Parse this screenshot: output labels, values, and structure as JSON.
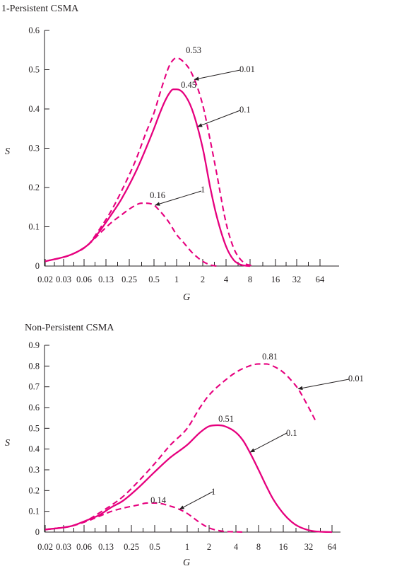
{
  "colors": {
    "curve": "#e6007e",
    "axis": "#231f20",
    "arrow": "#231f20"
  },
  "chart_data": [
    {
      "id": "persistent",
      "type": "line",
      "title": "1-Persistent CSMA",
      "xlabel": "G",
      "ylabel": "S",
      "x_scale": "log2",
      "x_ticks": [
        0.02,
        0.03,
        0.06,
        0.13,
        0.25,
        0.5,
        1,
        2,
        4,
        8,
        16,
        32,
        64
      ],
      "x_tick_labels": [
        "0.02",
        "0.03",
        "0.06",
        "0.13",
        "0.25",
        "0.5",
        "1",
        "2",
        "4",
        "8",
        "16",
        "32",
        "64"
      ],
      "y_ticks": [
        0,
        0.1,
        0.2,
        0.3,
        0.4,
        0.5,
        0.6
      ],
      "y_tick_labels": [
        "0",
        "0.1",
        "0.2",
        "0.3",
        "0.4",
        "0.5",
        "0.6"
      ],
      "ylim": [
        0,
        0.6
      ],
      "series": [
        {
          "name": "0.01",
          "style": "dashed",
          "x": [
            0.02,
            0.04,
            0.07,
            0.1,
            0.15,
            0.2,
            0.3,
            0.4,
            0.5,
            0.6,
            0.7,
            0.8,
            0.9,
            1.0,
            1.2,
            1.5,
            2,
            2.5,
            3,
            4,
            5,
            6,
            7,
            8,
            9
          ],
          "y": [
            0.012,
            0.03,
            0.055,
            0.09,
            0.14,
            0.19,
            0.27,
            0.34,
            0.39,
            0.44,
            0.48,
            0.51,
            0.525,
            0.53,
            0.52,
            0.49,
            0.41,
            0.32,
            0.24,
            0.11,
            0.045,
            0.018,
            0.006,
            0.002,
            0.0
          ]
        },
        {
          "name": "0.1",
          "style": "solid",
          "x": [
            0.02,
            0.04,
            0.07,
            0.1,
            0.15,
            0.2,
            0.3,
            0.4,
            0.5,
            0.6,
            0.7,
            0.8,
            0.9,
            1.0,
            1.2,
            1.5,
            2,
            2.5,
            3,
            4,
            5,
            6,
            7,
            8
          ],
          "y": [
            0.012,
            0.03,
            0.055,
            0.085,
            0.13,
            0.17,
            0.24,
            0.3,
            0.35,
            0.39,
            0.42,
            0.44,
            0.45,
            0.45,
            0.44,
            0.4,
            0.3,
            0.2,
            0.13,
            0.05,
            0.015,
            0.004,
            0.001,
            0.0
          ]
        },
        {
          "name": "1",
          "style": "dashed",
          "x": [
            0.02,
            0.04,
            0.07,
            0.1,
            0.15,
            0.2,
            0.25,
            0.3,
            0.35,
            0.4,
            0.5,
            0.6,
            0.7,
            0.8,
            1.0,
            1.2,
            1.5,
            2,
            2.5,
            3
          ],
          "y": [
            0.012,
            0.03,
            0.055,
            0.08,
            0.11,
            0.13,
            0.145,
            0.155,
            0.16,
            0.16,
            0.155,
            0.14,
            0.125,
            0.11,
            0.08,
            0.06,
            0.035,
            0.012,
            0.003,
            0.0
          ]
        }
      ],
      "annotations": [
        {
          "text": "0.53",
          "kind": "peak"
        },
        {
          "text": "0.45",
          "kind": "peak"
        },
        {
          "text": "0.16",
          "kind": "peak"
        },
        {
          "text": "0.01",
          "kind": "series-label",
          "series": "0.01",
          "target_x": 1.6,
          "target_y": 0.475
        },
        {
          "text": "0.1",
          "kind": "series-label",
          "series": "0.1",
          "target_x": 1.75,
          "target_y": 0.355
        },
        {
          "text": "1",
          "kind": "series-label",
          "series": "1",
          "target_x": 0.52,
          "target_y": 0.155
        }
      ]
    },
    {
      "id": "nonpersistent",
      "type": "line",
      "title": "Non-Persistent CSMA",
      "xlabel": "G",
      "ylabel": "S",
      "x_scale": "log2",
      "x_ticks": [
        0.02,
        0.03,
        0.06,
        0.13,
        0.25,
        0.5,
        1,
        2,
        4,
        8,
        16,
        32,
        64
      ],
      "x_tick_labels": [
        "0.02",
        "0.03",
        "0.06",
        "0.13",
        "0.25",
        "0.5",
        "1",
        "2",
        "4",
        "8",
        "16",
        "32",
        "64"
      ],
      "y_ticks": [
        0,
        0.1,
        0.2,
        0.3,
        0.4,
        0.5,
        0.6,
        0.7,
        0.8,
        0.9
      ],
      "y_tick_labels": [
        "0",
        "0.1",
        "0.2",
        "0.3",
        "0.4",
        "0.5",
        "0.6",
        "0.7",
        "0.8",
        "0.9"
      ],
      "ylim": [
        0,
        0.9
      ],
      "series": [
        {
          "name": "0.01",
          "style": "dashed",
          "x": [
            0.02,
            0.04,
            0.07,
            0.1,
            0.15,
            0.2,
            0.3,
            0.5,
            0.7,
            1,
            1.5,
            2,
            3,
            4,
            6,
            8,
            10,
            12,
            16,
            20,
            24,
            32,
            40
          ],
          "y": [
            0.012,
            0.03,
            0.06,
            0.09,
            0.13,
            0.17,
            0.24,
            0.33,
            0.42,
            0.5,
            0.6,
            0.66,
            0.73,
            0.77,
            0.8,
            0.81,
            0.81,
            0.8,
            0.77,
            0.73,
            0.69,
            0.6,
            0.53
          ]
        },
        {
          "name": "0.1",
          "style": "solid",
          "x": [
            0.02,
            0.04,
            0.07,
            0.1,
            0.15,
            0.2,
            0.3,
            0.5,
            0.7,
            1,
            1.5,
            2,
            2.5,
            3,
            4,
            5,
            6,
            8,
            10,
            12,
            16,
            20,
            24,
            32,
            40,
            50,
            64
          ],
          "y": [
            0.012,
            0.03,
            0.06,
            0.08,
            0.12,
            0.15,
            0.21,
            0.29,
            0.36,
            0.42,
            0.48,
            0.51,
            0.515,
            0.51,
            0.48,
            0.44,
            0.39,
            0.3,
            0.22,
            0.16,
            0.09,
            0.05,
            0.028,
            0.009,
            0.003,
            0.001,
            0.0
          ]
        },
        {
          "name": "1",
          "style": "dashed",
          "x": [
            0.02,
            0.04,
            0.07,
            0.1,
            0.15,
            0.2,
            0.3,
            0.4,
            0.5,
            0.6,
            0.7,
            0.8,
            1,
            1.2,
            1.5,
            2,
            2.5,
            3,
            4,
            5
          ],
          "y": [
            0.012,
            0.03,
            0.055,
            0.075,
            0.1,
            0.115,
            0.13,
            0.14,
            0.14,
            0.135,
            0.125,
            0.115,
            0.09,
            0.07,
            0.045,
            0.02,
            0.008,
            0.003,
            0.001,
            0.0
          ]
        }
      ],
      "annotations": [
        {
          "text": "0.81",
          "kind": "peak"
        },
        {
          "text": "0.51",
          "kind": "peak"
        },
        {
          "text": "0.14",
          "kind": "peak"
        },
        {
          "text": "0.01",
          "kind": "series-label",
          "series": "0.01",
          "target_x": 24,
          "target_y": 0.69
        },
        {
          "text": "0.1",
          "kind": "series-label",
          "series": "0.1",
          "target_x": 6.2,
          "target_y": 0.385
        },
        {
          "text": "1",
          "kind": "series-label",
          "series": "1",
          "target_x": 0.85,
          "target_y": 0.11
        }
      ]
    }
  ]
}
